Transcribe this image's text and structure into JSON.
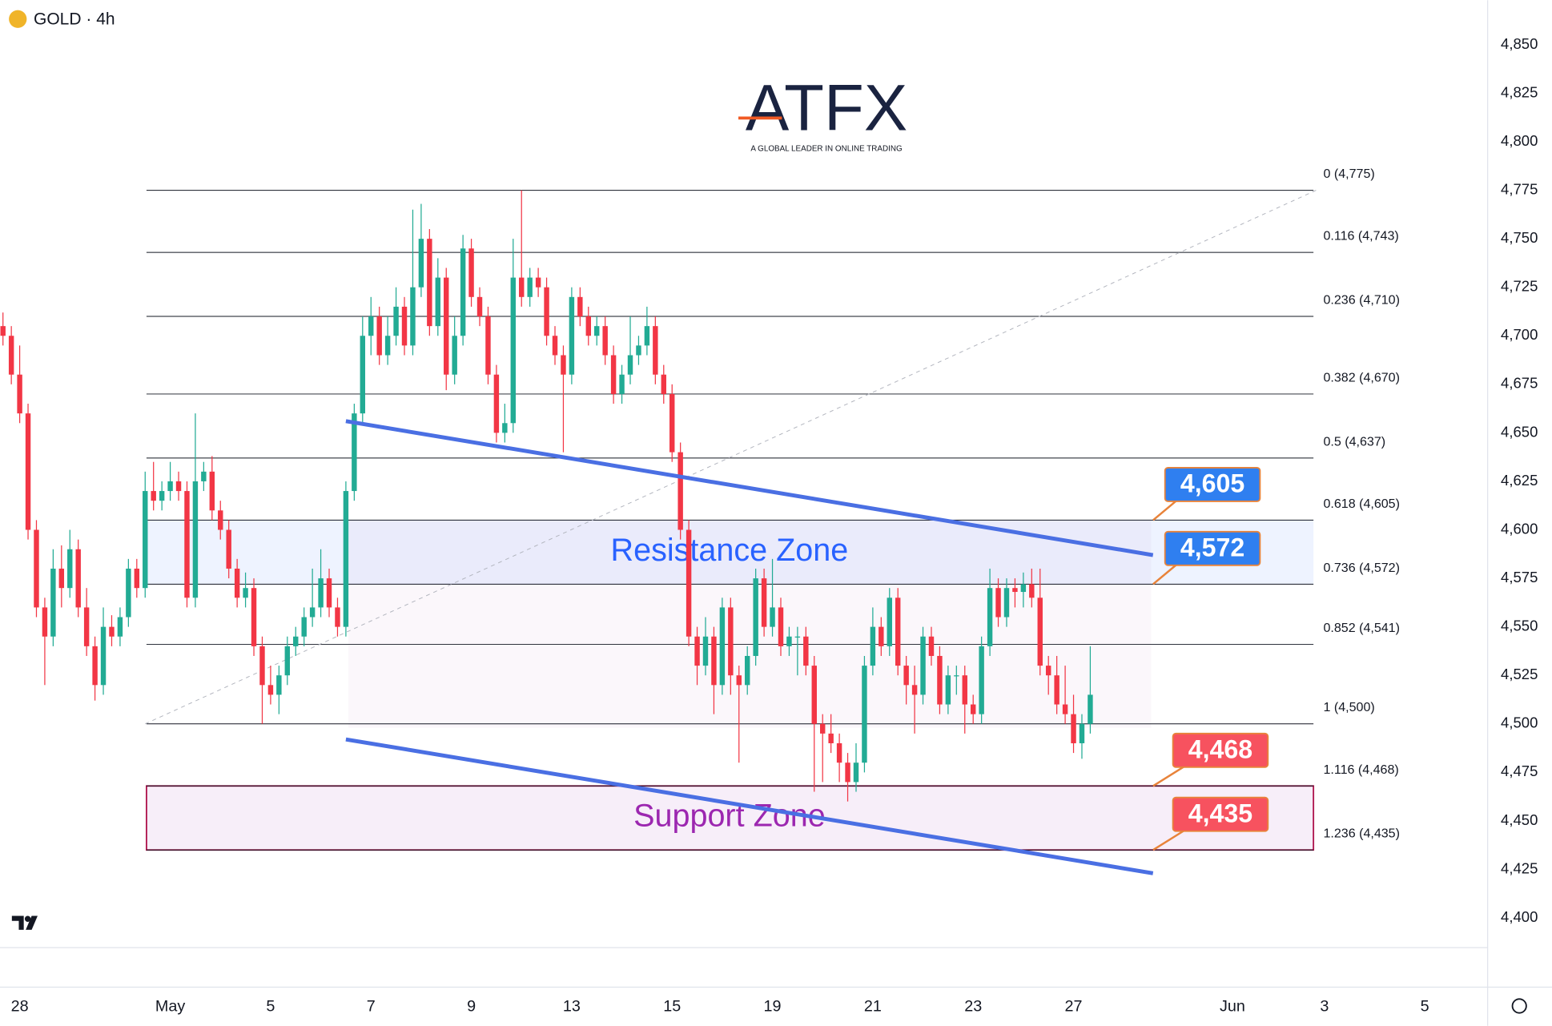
{
  "header": {
    "symbol": "GOLD · 4h"
  },
  "logo": {
    "brand": "ATFX",
    "tagline": "A GLOBAL LEADER IN ONLINE TRADING"
  },
  "chart_data": {
    "type": "candlestick",
    "up_color": "#22ab94",
    "down_color": "#f23645",
    "ylim": [
      4400,
      4850
    ],
    "yticks": [
      {
        "value": 4400,
        "label": "4,400"
      },
      {
        "value": 4425,
        "label": "4,425"
      },
      {
        "value": 4450,
        "label": "4,450"
      },
      {
        "value": 4475,
        "label": "4,475"
      },
      {
        "value": 4500,
        "label": "4,500"
      },
      {
        "value": 4525,
        "label": "4,525"
      },
      {
        "value": 4550,
        "label": "4,550"
      },
      {
        "value": 4575,
        "label": "4,575"
      },
      {
        "value": 4600,
        "label": "4,600"
      },
      {
        "value": 4625,
        "label": "4,625"
      },
      {
        "value": 4650,
        "label": "4,650"
      },
      {
        "value": 4675,
        "label": "4,675"
      },
      {
        "value": 4700,
        "label": "4,700"
      },
      {
        "value": 4725,
        "label": "4,725"
      },
      {
        "value": 4750,
        "label": "4,750"
      },
      {
        "value": 4775,
        "label": "4,775"
      },
      {
        "value": 4800,
        "label": "4,800"
      },
      {
        "value": 4825,
        "label": "4,825"
      },
      {
        "value": 4850,
        "label": "4,850"
      }
    ],
    "xticks": [
      {
        "value": 2,
        "label": "28"
      },
      {
        "value": 20,
        "label": "May"
      },
      {
        "value": 32,
        "label": "5"
      },
      {
        "value": 44,
        "label": "7"
      },
      {
        "value": 56,
        "label": "9"
      },
      {
        "value": 68,
        "label": "13"
      },
      {
        "value": 80,
        "label": "15"
      },
      {
        "value": 92,
        "label": "19"
      },
      {
        "value": 104,
        "label": "21"
      },
      {
        "value": 116,
        "label": "23"
      },
      {
        "value": 128,
        "label": "27"
      },
      {
        "value": 147,
        "label": "Jun"
      },
      {
        "value": 158,
        "label": "3"
      },
      {
        "value": 170,
        "label": "5"
      }
    ],
    "candles": [
      [
        4705,
        4712,
        4695,
        4700
      ],
      [
        4700,
        4705,
        4675,
        4680
      ],
      [
        4680,
        4695,
        4655,
        4660
      ],
      [
        4660,
        4665,
        4595,
        4600
      ],
      [
        4600,
        4605,
        4555,
        4560
      ],
      [
        4560,
        4565,
        4520,
        4545
      ],
      [
        4545,
        4590,
        4540,
        4580
      ],
      [
        4580,
        4592,
        4560,
        4570
      ],
      [
        4570,
        4600,
        4565,
        4590
      ],
      [
        4590,
        4595,
        4555,
        4560
      ],
      [
        4560,
        4570,
        4535,
        4540
      ],
      [
        4540,
        4545,
        4512,
        4520
      ],
      [
        4520,
        4560,
        4515,
        4550
      ],
      [
        4550,
        4556,
        4540,
        4545
      ],
      [
        4545,
        4560,
        4540,
        4555
      ],
      [
        4555,
        4585,
        4550,
        4580
      ],
      [
        4580,
        4585,
        4565,
        4570
      ],
      [
        4570,
        4630,
        4565,
        4620
      ],
      [
        4620,
        4635,
        4610,
        4615
      ],
      [
        4615,
        4625,
        4610,
        4620
      ],
      [
        4620,
        4635,
        4615,
        4625
      ],
      [
        4625,
        4630,
        4615,
        4620
      ],
      [
        4620,
        4625,
        4560,
        4565
      ],
      [
        4565,
        4660,
        4560,
        4625
      ],
      [
        4625,
        4635,
        4620,
        4630
      ],
      [
        4630,
        4638,
        4605,
        4610
      ],
      [
        4610,
        4615,
        4595,
        4600
      ],
      [
        4600,
        4605,
        4575,
        4580
      ],
      [
        4580,
        4585,
        4560,
        4565
      ],
      [
        4565,
        4578,
        4560,
        4570
      ],
      [
        4570,
        4575,
        4535,
        4540
      ],
      [
        4540,
        4545,
        4500,
        4520
      ],
      [
        4520,
        4530,
        4510,
        4515
      ],
      [
        4515,
        4530,
        4505,
        4525
      ],
      [
        4525,
        4545,
        4520,
        4540
      ],
      [
        4540,
        4550,
        4535,
        4545
      ],
      [
        4545,
        4560,
        4540,
        4555
      ],
      [
        4555,
        4580,
        4550,
        4560
      ],
      [
        4560,
        4590,
        4555,
        4575
      ],
      [
        4575,
        4580,
        4555,
        4560
      ],
      [
        4560,
        4565,
        4545,
        4550
      ],
      [
        4550,
        4625,
        4545,
        4620
      ],
      [
        4620,
        4665,
        4615,
        4660
      ],
      [
        4660,
        4710,
        4655,
        4700
      ],
      [
        4700,
        4720,
        4690,
        4710
      ],
      [
        4710,
        4715,
        4685,
        4690
      ],
      [
        4690,
        4710,
        4685,
        4700
      ],
      [
        4700,
        4725,
        4695,
        4715
      ],
      [
        4715,
        4720,
        4690,
        4695
      ],
      [
        4695,
        4765,
        4690,
        4725
      ],
      [
        4725,
        4768,
        4720,
        4750
      ],
      [
        4750,
        4755,
        4700,
        4705
      ],
      [
        4705,
        4740,
        4700,
        4730
      ],
      [
        4730,
        4735,
        4672,
        4680
      ],
      [
        4680,
        4710,
        4675,
        4700
      ],
      [
        4700,
        4752,
        4695,
        4745
      ],
      [
        4745,
        4750,
        4715,
        4720
      ],
      [
        4720,
        4725,
        4705,
        4710
      ],
      [
        4710,
        4715,
        4675,
        4680
      ],
      [
        4680,
        4685,
        4645,
        4650
      ],
      [
        4650,
        4665,
        4645,
        4655
      ],
      [
        4655,
        4750,
        4650,
        4730
      ],
      [
        4730,
        4775,
        4715,
        4720
      ],
      [
        4720,
        4735,
        4715,
        4730
      ],
      [
        4730,
        4735,
        4720,
        4725
      ],
      [
        4725,
        4730,
        4695,
        4700
      ],
      [
        4700,
        4705,
        4685,
        4690
      ],
      [
        4690,
        4695,
        4640,
        4680
      ],
      [
        4680,
        4725,
        4675,
        4720
      ],
      [
        4720,
        4725,
        4705,
        4710
      ],
      [
        4710,
        4715,
        4695,
        4700
      ],
      [
        4700,
        4710,
        4695,
        4705
      ],
      [
        4705,
        4710,
        4685,
        4690
      ],
      [
        4690,
        4695,
        4665,
        4670
      ],
      [
        4670,
        4685,
        4665,
        4680
      ],
      [
        4680,
        4710,
        4675,
        4690
      ],
      [
        4690,
        4700,
        4685,
        4695
      ],
      [
        4695,
        4715,
        4690,
        4705
      ],
      [
        4705,
        4710,
        4675,
        4680
      ],
      [
        4680,
        4685,
        4665,
        4670
      ],
      [
        4670,
        4675,
        4635,
        4640
      ],
      [
        4640,
        4645,
        4595,
        4600
      ],
      [
        4600,
        4605,
        4540,
        4545
      ],
      [
        4545,
        4550,
        4520,
        4530
      ],
      [
        4530,
        4555,
        4525,
        4545
      ],
      [
        4545,
        4550,
        4505,
        4520
      ],
      [
        4520,
        4565,
        4515,
        4560
      ],
      [
        4560,
        4565,
        4515,
        4525
      ],
      [
        4525,
        4530,
        4480,
        4520
      ],
      [
        4520,
        4540,
        4515,
        4535
      ],
      [
        4535,
        4580,
        4530,
        4575
      ],
      [
        4575,
        4580,
        4545,
        4550
      ],
      [
        4550,
        4585,
        4545,
        4560
      ],
      [
        4560,
        4565,
        4535,
        4540
      ],
      [
        4540,
        4550,
        4535,
        4545
      ],
      [
        4545,
        4550,
        4525,
        4545
      ],
      [
        4545,
        4550,
        4525,
        4530
      ],
      [
        4530,
        4535,
        4465,
        4500
      ],
      [
        4500,
        4505,
        4470,
        4495
      ],
      [
        4495,
        4505,
        4485,
        4490
      ],
      [
        4490,
        4495,
        4470,
        4480
      ],
      [
        4480,
        4485,
        4460,
        4470
      ],
      [
        4470,
        4490,
        4465,
        4480
      ],
      [
        4480,
        4535,
        4475,
        4530
      ],
      [
        4530,
        4560,
        4525,
        4550
      ],
      [
        4550,
        4555,
        4535,
        4540
      ],
      [
        4540,
        4570,
        4535,
        4565
      ],
      [
        4565,
        4570,
        4525,
        4530
      ],
      [
        4530,
        4535,
        4510,
        4520
      ],
      [
        4520,
        4530,
        4495,
        4515
      ],
      [
        4515,
        4550,
        4510,
        4545
      ],
      [
        4545,
        4550,
        4530,
        4535
      ],
      [
        4535,
        4540,
        4505,
        4510
      ],
      [
        4510,
        4530,
        4505,
        4525
      ],
      [
        4525,
        4530,
        4515,
        4525
      ],
      [
        4525,
        4530,
        4495,
        4510
      ],
      [
        4510,
        4515,
        4500,
        4505
      ],
      [
        4505,
        4545,
        4500,
        4540
      ],
      [
        4540,
        4580,
        4535,
        4570
      ],
      [
        4570,
        4575,
        4550,
        4555
      ],
      [
        4555,
        4575,
        4550,
        4570
      ],
      [
        4570,
        4575,
        4560,
        4568
      ],
      [
        4568,
        4578,
        4560,
        4572
      ],
      [
        4572,
        4580,
        4560,
        4565
      ],
      [
        4565,
        4580,
        4525,
        4530
      ],
      [
        4530,
        4535,
        4515,
        4525
      ],
      [
        4525,
        4535,
        4505,
        4510
      ],
      [
        4510,
        4530,
        4500,
        4505
      ],
      [
        4505,
        4515,
        4485,
        4490
      ],
      [
        4490,
        4505,
        4482,
        4500
      ],
      [
        4500,
        4540,
        4495,
        4515
      ]
    ],
    "fib_levels": [
      {
        "value": 4775,
        "label": "0 (4,775)"
      },
      {
        "value": 4743,
        "label": "0.116 (4,743)"
      },
      {
        "value": 4710,
        "label": "0.236 (4,710)"
      },
      {
        "value": 4670,
        "label": "0.382 (4,670)"
      },
      {
        "value": 4637,
        "label": "0.5 (4,637)"
      },
      {
        "value": 4605,
        "label": "0.618 (4,605)"
      },
      {
        "value": 4572,
        "label": "0.736 (4,572)"
      },
      {
        "value": 4541,
        "label": "0.852 (4,541)"
      },
      {
        "value": 4500,
        "label": "1 (4,500)"
      },
      {
        "value": 4468,
        "label": "1.116 (4,468)"
      },
      {
        "value": 4435,
        "label": "1.236 (4,435)"
      }
    ],
    "zones": [
      {
        "name": "Resistance Zone",
        "low": 4572,
        "high": 4605,
        "color": "#2962ff"
      },
      {
        "name": "Support Zone",
        "low": 4435,
        "high": 4468,
        "color": "#9c27b0"
      }
    ],
    "callouts": [
      {
        "value": 4605,
        "label": "4,605",
        "color": "#2f7ff0"
      },
      {
        "value": 4572,
        "label": "4,572",
        "color": "#2f7ff0"
      },
      {
        "value": 4468,
        "label": "4,468",
        "color": "#f7525f"
      },
      {
        "value": 4435,
        "label": "4,435",
        "color": "#f7525f"
      }
    ],
    "trendlines": [
      {
        "x": [
          41,
          137.5
        ],
        "y": [
          4656,
          4587
        ]
      },
      {
        "x": [
          41,
          137.5
        ],
        "y": [
          4492,
          4423
        ]
      }
    ],
    "fib_diagonal": {
      "x": [
        17,
        157
      ],
      "y": [
        4500,
        4775
      ]
    }
  }
}
